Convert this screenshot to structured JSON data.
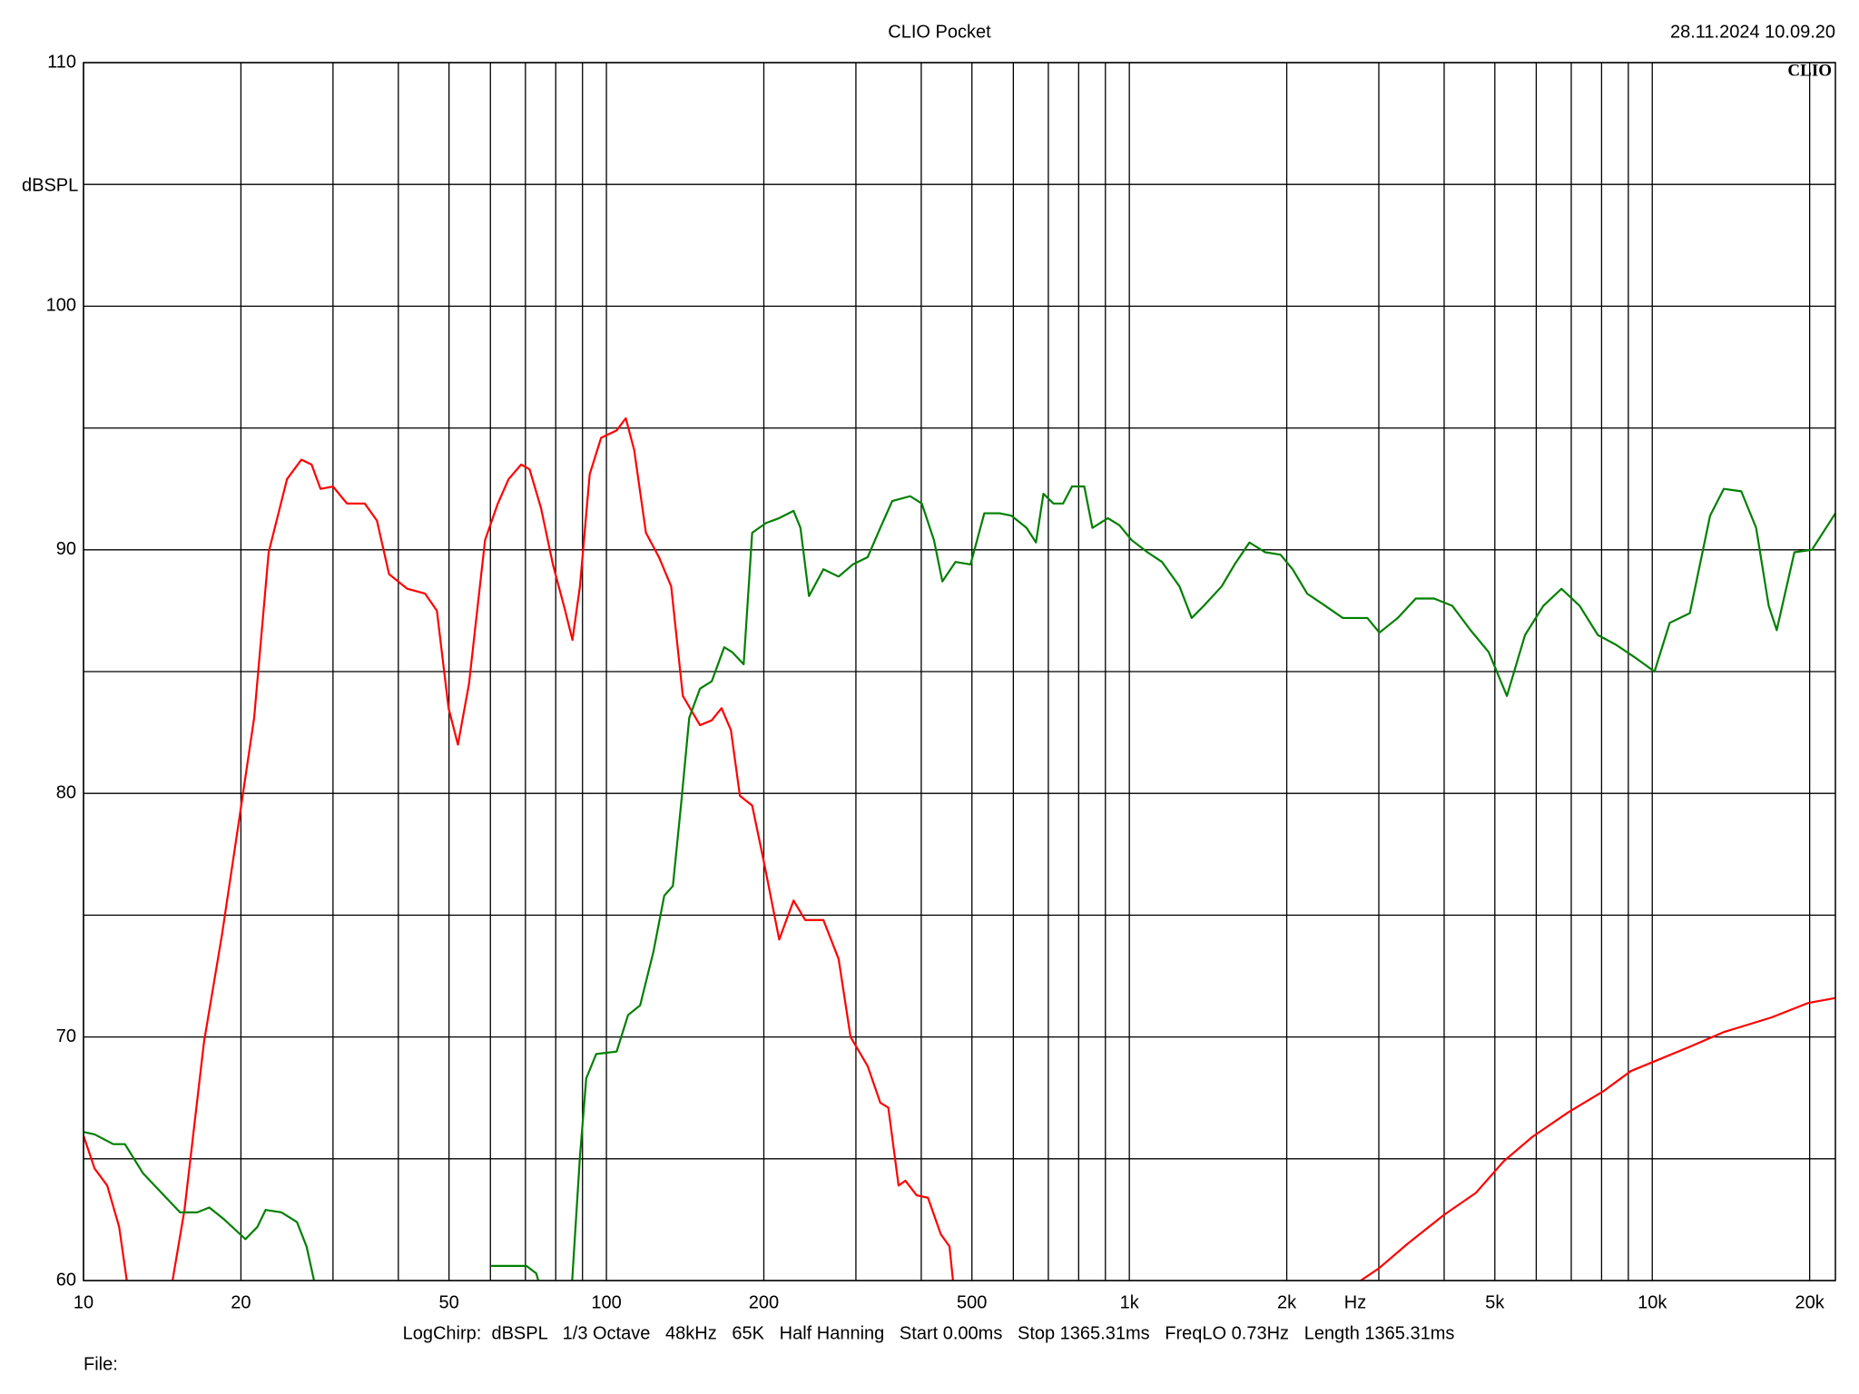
{
  "chart_data": {
    "type": "line",
    "title": "CLIO Pocket",
    "timestamp": "28.11.2024 10.09.20",
    "logo": "CLIO",
    "ylabel": "dBSPL",
    "x_unit": "Hz",
    "footer": "LogChirp:  dBSPL   1/3 Octave   48kHz   65K   Half Hanning   Start 0.00ms   Stop 1365.31ms   FreqLO 0.73Hz   Length 1365.31ms",
    "file_label": "File:",
    "xscale": "log",
    "xlim": [
      10,
      22400
    ],
    "ylim": [
      60,
      110
    ],
    "xticks": [
      10,
      20,
      50,
      100,
      200,
      500,
      {
        "value": 1000,
        "label": "1k"
      },
      {
        "value": 2000,
        "label": "2k"
      },
      {
        "value": 5000,
        "label": "5k"
      },
      {
        "value": 10000,
        "label": "10k"
      },
      {
        "value": 20000,
        "label": "20k"
      }
    ],
    "yticks": [
      60,
      70,
      80,
      90,
      100,
      110
    ],
    "x_minor_grid": [
      30,
      40,
      60,
      70,
      80,
      90,
      300,
      400,
      600,
      700,
      800,
      900,
      3000,
      4000,
      6000,
      7000,
      8000,
      9000
    ],
    "y_minor_grid": [
      65,
      75,
      85,
      95,
      105
    ],
    "grid": true,
    "series": [
      {
        "color": "#ff0000",
        "x": [
          10,
          10.5,
          11.1,
          11.7,
          12.1,
          13.4,
          14.8,
          15.6,
          17,
          18.4,
          19.9,
          21.2,
          22.6,
          24.5,
          26.1,
          27.3,
          28.4,
          30,
          31.9,
          34.5,
          36.4,
          38.4,
          41.6,
          45,
          47.4,
          49.9,
          52,
          54.6,
          58.6,
          62,
          65,
          68.7,
          71.3,
          75,
          79,
          83.4,
          86.1,
          89,
          92.9,
          97.7,
          104.6,
          108.9,
          113,
          119,
          126,
          133,
          140,
          151,
          159,
          166,
          173,
          180,
          190,
          200,
          214,
          228,
          240,
          260,
          278,
          293,
          316,
          334,
          346,
          362,
          373,
          392,
          412,
          436,
          453,
          460,
          1100,
          2770,
          3000,
          3400,
          4000,
          4600,
          5200,
          5900,
          6900,
          8100,
          9100,
          10100,
          11800,
          13700,
          16900,
          19900,
          22400
        ],
        "values": [
          65.95,
          64.6,
          63.9,
          62.2,
          60,
          null,
          60,
          62.9,
          69.8,
          74.2,
          79.1,
          83.1,
          89.9,
          92.9,
          93.7,
          93.5,
          92.5,
          92.6,
          91.9,
          91.9,
          91.2,
          89.0,
          88.4,
          88.2,
          87.5,
          83.5,
          82.0,
          84.5,
          90.4,
          91.9,
          92.9,
          93.5,
          93.3,
          91.7,
          89.4,
          87.5,
          86.3,
          88.5,
          93.1,
          94.6,
          94.9,
          95.4,
          94.1,
          90.7,
          89.7,
          88.5,
          84.0,
          82.8,
          83.0,
          83.5,
          82.6,
          79.9,
          79.5,
          77.2,
          74.0,
          75.6,
          74.8,
          74.8,
          73.2,
          70.0,
          68.8,
          67.3,
          67.1,
          63.9,
          64.1,
          63.5,
          63.4,
          61.9,
          61.4,
          60,
          null,
          60,
          60.5,
          61.5,
          62.7,
          63.6,
          64.9,
          65.9,
          66.9,
          67.8,
          68.6,
          69.0,
          69.6,
          70.2,
          70.8,
          71.4,
          71.6
        ]
      },
      {
        "color": "#008000",
        "x": [
          10,
          10.5,
          11.4,
          12.0,
          13.0,
          14.1,
          15.3,
          16.5,
          17.4,
          18.6,
          20.4,
          21.5,
          22.3,
          23.9,
          25.6,
          26.7,
          27.6,
          40,
          60.2,
          70.3,
          73.4,
          74.1,
          80,
          86,
          89,
          91.5,
          95.6,
          104.6,
          110,
          116,
          123,
          129,
          134,
          139,
          144,
          151,
          159,
          168,
          174,
          183,
          190,
          202,
          214,
          228,
          235,
          244,
          260,
          278,
          296,
          316,
          334,
          352,
          381,
          401,
          423,
          439,
          465,
          497,
          528,
          565,
          595,
          636,
          663,
          685,
          716,
          747,
          777,
          820,
          850,
          910,
          958,
          1010,
          1083,
          1155,
          1247,
          1316,
          1388,
          1502,
          1590,
          1697,
          1818,
          1946,
          2053,
          2188,
          2370,
          2560,
          2852,
          3008,
          3260,
          3530,
          3826,
          4146,
          4493,
          4867,
          5273,
          5711,
          6190,
          6705,
          7264,
          7871,
          8527,
          9240,
          10100,
          10800,
          11800,
          12900,
          13700,
          14800,
          15800,
          16700,
          17300,
          18700,
          20200,
          22400
        ],
        "values": [
          66.1,
          66.0,
          65.6,
          65.6,
          64.4,
          63.6,
          62.8,
          62.8,
          63.0,
          62.5,
          61.7,
          62.2,
          62.9,
          62.8,
          62.4,
          61.4,
          60,
          null,
          60.6,
          60.6,
          60.3,
          60,
          null,
          60,
          65.1,
          68.3,
          69.3,
          69.4,
          70.9,
          71.3,
          73.5,
          75.8,
          76.2,
          79.6,
          83.1,
          84.3,
          84.6,
          86.0,
          85.8,
          85.3,
          90.7,
          91.1,
          91.3,
          91.6,
          90.9,
          88.1,
          89.2,
          88.9,
          89.4,
          89.7,
          90.9,
          92.0,
          92.2,
          91.9,
          90.4,
          88.7,
          89.5,
          89.4,
          91.5,
          91.5,
          91.4,
          90.9,
          90.3,
          92.3,
          91.9,
          91.9,
          92.6,
          92.6,
          90.9,
          91.3,
          91.0,
          90.4,
          89.9,
          89.5,
          88.5,
          87.2,
          87.7,
          88.5,
          89.4,
          90.3,
          89.9,
          89.8,
          89.2,
          88.2,
          87.7,
          87.2,
          87.2,
          86.6,
          87.2,
          88.0,
          88.0,
          87.7,
          86.7,
          85.8,
          84.0,
          86.5,
          87.7,
          88.4,
          87.7,
          86.5,
          86.1,
          85.6,
          85.0,
          87.0,
          87.4,
          91.4,
          92.5,
          92.4,
          90.9,
          87.7,
          86.7,
          89.9,
          90.0,
          91.5
        ]
      }
    ]
  }
}
